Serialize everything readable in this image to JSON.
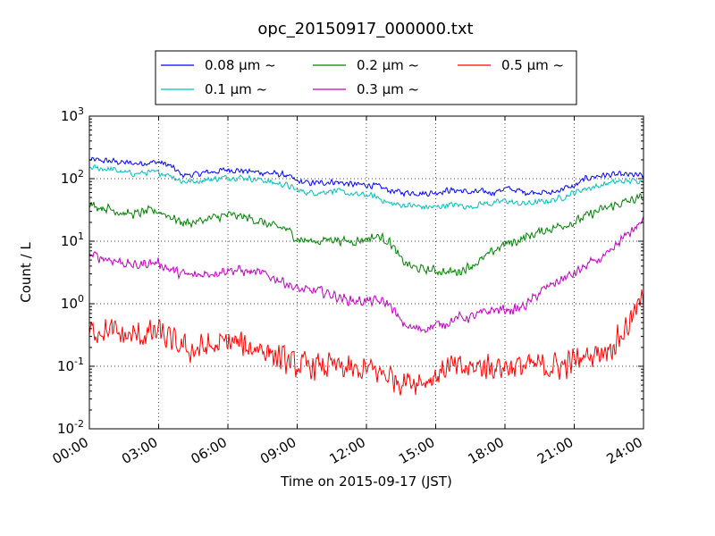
{
  "chart_data": {
    "type": "line",
    "title": "opc_20150917_000000.txt",
    "xlabel": "Time on 2015-09-17 (JST)",
    "ylabel": "Count / L",
    "y_scale": "log",
    "ylim": [
      0.01,
      1000
    ],
    "xlim": [
      "00:00",
      "24:00"
    ],
    "grid": true,
    "legend_position": "top, above plot",
    "x_ticks": [
      "00:00",
      "03:00",
      "06:00",
      "09:00",
      "12:00",
      "15:00",
      "18:00",
      "21:00",
      "24:00"
    ],
    "y_ticks": [
      {
        "base": "10",
        "exp": "-2",
        "value": 0.01
      },
      {
        "base": "10",
        "exp": "-1",
        "value": 0.1
      },
      {
        "base": "10",
        "exp": "0",
        "value": 1
      },
      {
        "base": "10",
        "exp": "1",
        "value": 10
      },
      {
        "base": "10",
        "exp": "2",
        "value": 100
      },
      {
        "base": "10",
        "exp": "3",
        "value": 1000
      }
    ],
    "x_hours": [
      0,
      0.5,
      1,
      1.5,
      2,
      2.5,
      3,
      3.5,
      4,
      4.5,
      5,
      5.5,
      6,
      6.5,
      7,
      7.5,
      8,
      8.5,
      9,
      9.5,
      10,
      10.5,
      11,
      11.5,
      12,
      12.5,
      13,
      13.5,
      14,
      14.5,
      15,
      15.5,
      16,
      16.5,
      17,
      17.5,
      18,
      18.5,
      19,
      19.5,
      20,
      20.5,
      21,
      21.5,
      22,
      22.5,
      23,
      23.5,
      24
    ],
    "series": [
      {
        "name": "0.08 μm ~",
        "color": "#0000ff",
        "noise": 0.06,
        "values": [
          200,
          195,
          190,
          180,
          175,
          180,
          185,
          160,
          115,
          115,
          125,
          130,
          140,
          135,
          130,
          125,
          120,
          115,
          90,
          85,
          85,
          90,
          85,
          80,
          80,
          75,
          65,
          60,
          60,
          58,
          60,
          65,
          65,
          60,
          62,
          60,
          70,
          65,
          60,
          62,
          58,
          70,
          75,
          100,
          110,
          115,
          115,
          115,
          110
        ]
      },
      {
        "name": "0.1 μm ~",
        "color": "#00bfbf",
        "noise": 0.06,
        "values": [
          150,
          145,
          140,
          125,
          120,
          125,
          125,
          115,
          90,
          90,
          95,
          100,
          105,
          105,
          100,
          95,
          85,
          80,
          65,
          60,
          60,
          65,
          60,
          55,
          55,
          50,
          40,
          38,
          37,
          35,
          35,
          38,
          38,
          35,
          40,
          40,
          45,
          40,
          40,
          42,
          45,
          50,
          60,
          70,
          75,
          85,
          90,
          92,
          95
        ]
      },
      {
        "name": "0.2 μm ~",
        "color": "#008000",
        "noise": 0.09,
        "values": [
          38,
          35,
          32,
          28,
          27,
          30,
          30,
          25,
          20,
          20,
          22,
          24,
          26,
          25,
          23,
          20,
          17,
          16,
          11,
          10,
          10,
          11,
          10,
          10,
          11,
          12,
          10,
          5,
          3.8,
          3.5,
          3.4,
          3.2,
          3.3,
          4,
          5,
          7,
          9,
          10,
          12,
          14,
          16,
          18,
          20,
          25,
          30,
          35,
          40,
          45,
          50
        ]
      },
      {
        "name": "0.3 μm ~",
        "color": "#bf00bf",
        "noise": 0.1,
        "values": [
          6,
          5.5,
          5,
          4.5,
          4,
          4.5,
          4.5,
          3.5,
          3,
          2.8,
          3,
          3.2,
          3.5,
          3.4,
          3.2,
          3,
          2.6,
          2.2,
          1.7,
          1.6,
          1.6,
          1.4,
          1.2,
          1.1,
          1.1,
          1.1,
          1,
          0.5,
          0.4,
          0.4,
          0.45,
          0.5,
          0.6,
          0.6,
          0.7,
          0.8,
          0.8,
          0.8,
          1,
          1.5,
          2,
          2.5,
          3,
          4,
          5,
          6,
          10,
          15,
          22
        ]
      },
      {
        "name": "0.5 μm ~",
        "color": "#ff0000",
        "noise": 0.27,
        "values": [
          0.35,
          0.4,
          0.35,
          0.3,
          0.3,
          0.32,
          0.35,
          0.25,
          0.2,
          0.18,
          0.2,
          0.2,
          0.25,
          0.22,
          0.2,
          0.2,
          0.15,
          0.12,
          0.1,
          0.1,
          0.1,
          0.1,
          0.09,
          0.08,
          0.09,
          0.08,
          0.07,
          0.06,
          0.06,
          0.06,
          0.07,
          0.1,
          0.09,
          0.09,
          0.1,
          0.1,
          0.1,
          0.1,
          0.1,
          0.1,
          0.1,
          0.1,
          0.12,
          0.15,
          0.17,
          0.2,
          0.3,
          0.6,
          1.2
        ]
      }
    ]
  }
}
